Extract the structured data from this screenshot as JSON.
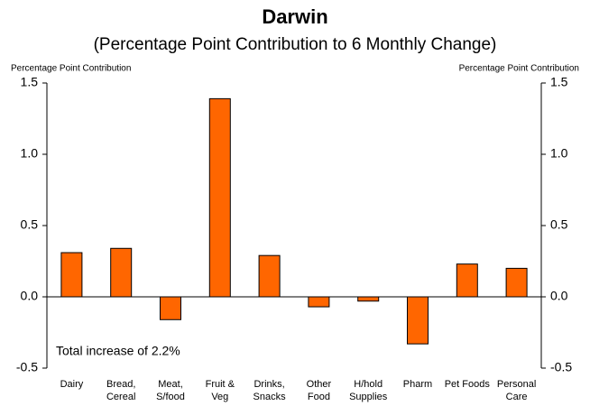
{
  "chart_data": {
    "type": "bar",
    "title": "Darwin",
    "subtitle": "(Percentage Point Contribution to 6 Monthly Change)",
    "y_label": "Percentage Point Contribution",
    "y2_label": "Percentage Point Contribution",
    "annotation": "Total increase of 2.2%",
    "categories": [
      [
        "Dairy"
      ],
      [
        "Bread,",
        "Cereal"
      ],
      [
        "Meat,",
        "S/food"
      ],
      [
        "Fruit &",
        "Veg"
      ],
      [
        "Drinks,",
        "Snacks"
      ],
      [
        "Other",
        "Food"
      ],
      [
        "H/hold",
        "Supplies"
      ],
      [
        "Pharm"
      ],
      [
        "Pet Foods"
      ],
      [
        "Personal",
        "Care"
      ]
    ],
    "values": [
      0.31,
      0.34,
      -0.16,
      1.39,
      0.29,
      -0.07,
      -0.03,
      -0.33,
      0.23,
      0.2
    ],
    "color": "#ff6600",
    "ylim": [
      -0.5,
      1.5
    ],
    "yticks": [
      -0.5,
      {
        "value": 0,
        "label": "0.0"
      },
      0.5,
      {
        "value": 1,
        "label": "1.0"
      },
      1.5
    ],
    "y2lim": [
      -0.5,
      1.5
    ],
    "y2ticks": [
      -0.5,
      {
        "value": 0,
        "label": "0.0"
      },
      0.5,
      {
        "value": 1,
        "label": "1.0"
      },
      1.5
    ],
    "grid": false
  }
}
